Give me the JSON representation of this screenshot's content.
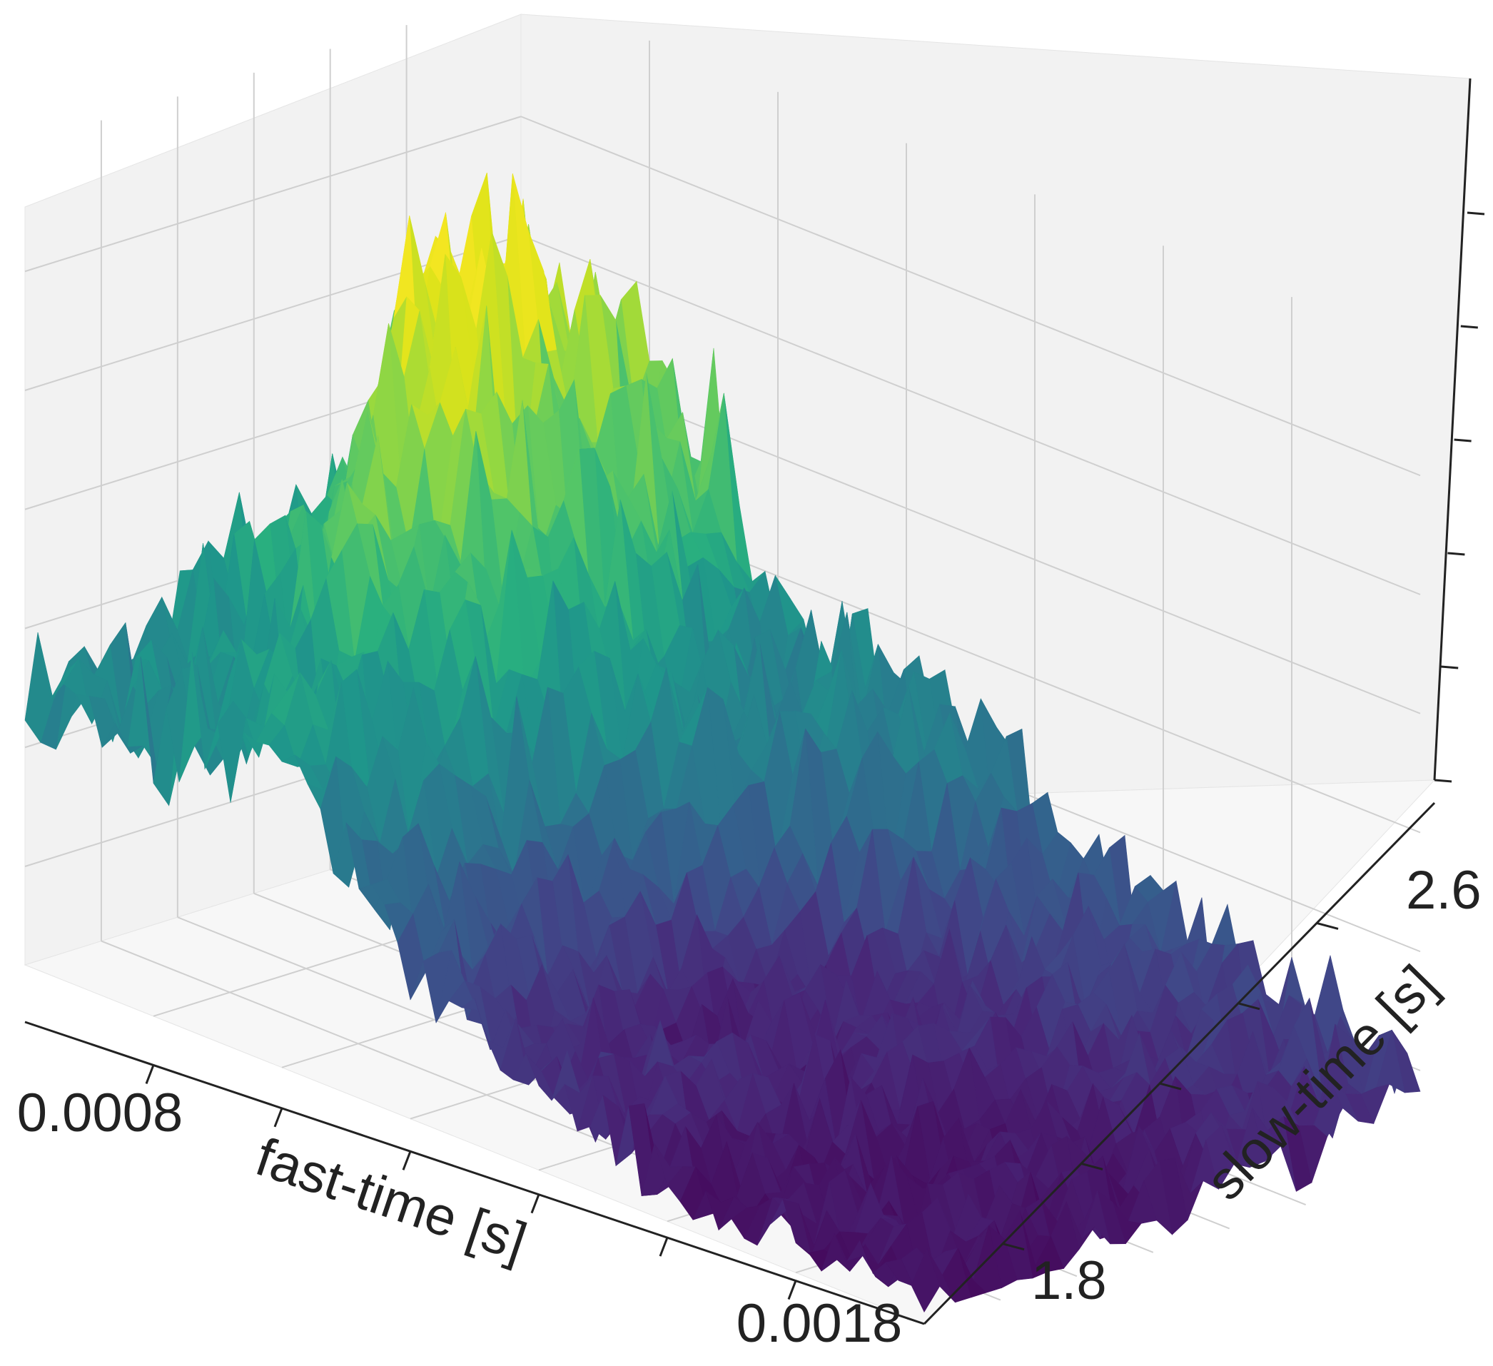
{
  "chart_data": {
    "type": "surface",
    "colormap": "viridis",
    "xlabel": "fast-time [s]",
    "ylabel": "slow-time [s]",
    "x_tick_labels": [
      "0.0008",
      "0.0018"
    ],
    "y_tick_labels": [
      "1.8",
      "2.6"
    ],
    "z_tick_labels": [],
    "xlim": [
      0.0006,
      0.002
    ],
    "ylim": [
      1.6,
      2.9
    ],
    "x_ticks": [
      0.0008,
      0.001,
      0.0012,
      0.0014,
      0.0016,
      0.0018
    ],
    "y_ticks": [
      1.8,
      2.0,
      2.2,
      2.4,
      2.6
    ],
    "z_tick_count": 6,
    "grid": true,
    "description_of_amplitude": [
      {
        "fast_time": 0.0006,
        "slow_time": 1.7,
        "amplitude": 0.45
      },
      {
        "fast_time": 0.0006,
        "slow_time": 2.3,
        "amplitude": 0.55
      },
      {
        "fast_time": 0.00075,
        "slow_time": 2.5,
        "amplitude": 1.0
      },
      {
        "fast_time": 0.0009,
        "slow_time": 2.6,
        "amplitude": 0.75
      },
      {
        "fast_time": 0.0011,
        "slow_time": 2.7,
        "amplitude": 0.45
      },
      {
        "fast_time": 0.0014,
        "slow_time": 2.2,
        "amplitude": 0.1
      },
      {
        "fast_time": 0.0018,
        "slow_time": 1.8,
        "amplitude": 0.05
      }
    ]
  }
}
